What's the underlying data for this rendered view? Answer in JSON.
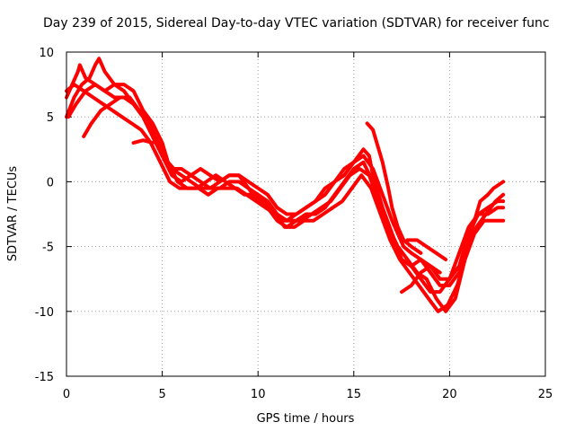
{
  "chart_data": {
    "type": "line",
    "title": "Day 239 of 2015, Sidereal Day-to-day VTEC variation (SDTVAR) for receiver func",
    "xlabel": "GPS time / hours",
    "ylabel": "SDTVAR / TECUs",
    "xlim": [
      0,
      25
    ],
    "ylim": [
      -15,
      10
    ],
    "xticks": [
      0,
      5,
      10,
      15,
      20,
      25
    ],
    "yticks": [
      -15,
      -10,
      -5,
      0,
      5,
      10
    ],
    "grid": true,
    "series_color": "#ff0000",
    "series": [
      {
        "name": "s1",
        "points": [
          [
            0.0,
            6.5
          ],
          [
            0.3,
            7.5
          ],
          [
            0.6,
            8.5
          ],
          [
            0.7,
            9.0
          ],
          [
            1.0,
            8.0
          ],
          [
            1.5,
            7.5
          ],
          [
            2.0,
            7.0
          ],
          [
            2.5,
            7.5
          ],
          [
            3.0,
            7.0
          ],
          [
            3.5,
            6.0
          ],
          [
            4.0,
            5.0
          ],
          [
            4.5,
            3.5
          ],
          [
            5.0,
            2.0
          ],
          [
            5.5,
            0.5
          ],
          [
            6.0,
            0.0
          ],
          [
            6.5,
            0.5
          ],
          [
            7.0,
            0.0
          ],
          [
            7.5,
            -0.5
          ],
          [
            8.0,
            0.0
          ],
          [
            8.5,
            0.5
          ],
          [
            9.0,
            0.5
          ],
          [
            9.5,
            -0.5
          ],
          [
            10.0,
            -1.0
          ],
          [
            10.5,
            -1.5
          ],
          [
            11.0,
            -2.5
          ],
          [
            11.5,
            -3.0
          ],
          [
            12.0,
            -2.5
          ],
          [
            12.5,
            -2.0
          ],
          [
            13.0,
            -1.5
          ],
          [
            13.5,
            -1.0
          ],
          [
            14.0,
            0.0
          ],
          [
            14.5,
            0.5
          ],
          [
            15.0,
            1.5
          ],
          [
            15.5,
            2.0
          ],
          [
            16.0,
            1.0
          ],
          [
            16.5,
            -1.0
          ],
          [
            17.0,
            -3.0
          ],
          [
            17.3,
            -4.0
          ],
          [
            17.6,
            -5.0
          ],
          [
            18.0,
            -5.5
          ],
          [
            18.5,
            -6.0
          ],
          [
            19.0,
            -7.0
          ],
          [
            19.5,
            -8.0
          ],
          [
            20.0,
            -8.0
          ],
          [
            20.5,
            -7.0
          ],
          [
            21.0,
            -4.5
          ],
          [
            21.3,
            -3.0
          ],
          [
            21.6,
            -1.5
          ],
          [
            22.0,
            -1.0
          ],
          [
            22.3,
            -0.5
          ],
          [
            22.8,
            0.0
          ]
        ]
      },
      {
        "name": "s2",
        "points": [
          [
            0.0,
            5.0
          ],
          [
            0.4,
            6.5
          ],
          [
            0.8,
            7.5
          ],
          [
            1.2,
            8.0
          ],
          [
            1.5,
            9.0
          ],
          [
            1.7,
            9.5
          ],
          [
            2.0,
            8.5
          ],
          [
            2.5,
            7.5
          ],
          [
            3.0,
            7.5
          ],
          [
            3.5,
            7.0
          ],
          [
            4.0,
            5.5
          ],
          [
            4.5,
            4.5
          ],
          [
            5.0,
            3.0
          ],
          [
            5.3,
            1.5
          ],
          [
            5.6,
            1.0
          ],
          [
            6.0,
            1.0
          ],
          [
            6.5,
            0.5
          ],
          [
            7.0,
            1.0
          ],
          [
            7.5,
            0.5
          ],
          [
            8.0,
            0.0
          ],
          [
            8.5,
            0.5
          ],
          [
            9.0,
            0.5
          ],
          [
            9.5,
            0.0
          ],
          [
            10.0,
            -0.5
          ],
          [
            10.5,
            -1.0
          ],
          [
            11.0,
            -2.0
          ],
          [
            11.5,
            -2.5
          ],
          [
            12.0,
            -2.5
          ],
          [
            12.5,
            -2.0
          ],
          [
            13.0,
            -1.5
          ],
          [
            13.5,
            -0.5
          ],
          [
            14.0,
            0.0
          ],
          [
            14.5,
            1.0
          ],
          [
            15.0,
            1.5
          ],
          [
            15.5,
            2.5
          ],
          [
            15.8,
            2.0
          ],
          [
            16.0,
            0.5
          ],
          [
            16.5,
            -2.0
          ],
          [
            17.0,
            -4.0
          ],
          [
            17.5,
            -6.0
          ],
          [
            18.0,
            -6.5
          ],
          [
            18.5,
            -6.0
          ],
          [
            19.0,
            -6.5
          ],
          [
            19.5,
            -7.5
          ],
          [
            20.0,
            -7.5
          ],
          [
            20.5,
            -6.5
          ],
          [
            21.0,
            -4.0
          ],
          [
            21.5,
            -2.5
          ],
          [
            22.0,
            -2.0
          ],
          [
            22.5,
            -1.5
          ],
          [
            22.8,
            -1.5
          ]
        ]
      },
      {
        "name": "s3",
        "points": [
          [
            0.1,
            5.0
          ],
          [
            0.5,
            6.0
          ],
          [
            1.0,
            7.0
          ],
          [
            1.5,
            7.5
          ],
          [
            2.0,
            7.0
          ],
          [
            2.5,
            6.5
          ],
          [
            3.0,
            6.5
          ],
          [
            3.5,
            6.0
          ],
          [
            4.0,
            5.0
          ],
          [
            4.5,
            3.5
          ],
          [
            5.0,
            2.0
          ],
          [
            5.5,
            1.0
          ],
          [
            6.0,
            0.5
          ],
          [
            6.5,
            0.0
          ],
          [
            7.0,
            -0.5
          ],
          [
            7.5,
            -0.5
          ],
          [
            8.0,
            -0.5
          ],
          [
            8.5,
            0.0
          ],
          [
            9.0,
            0.0
          ],
          [
            9.5,
            -0.5
          ],
          [
            10.0,
            -1.5
          ],
          [
            10.5,
            -2.0
          ],
          [
            11.0,
            -3.0
          ],
          [
            11.5,
            -3.5
          ],
          [
            12.0,
            -3.0
          ],
          [
            12.5,
            -2.5
          ],
          [
            13.0,
            -2.5
          ],
          [
            13.5,
            -2.0
          ],
          [
            14.0,
            -1.0
          ],
          [
            14.5,
            0.0
          ],
          [
            15.0,
            1.0
          ],
          [
            15.5,
            1.5
          ],
          [
            16.0,
            0.0
          ],
          [
            16.5,
            -2.5
          ],
          [
            17.0,
            -4.5
          ],
          [
            17.5,
            -6.0
          ],
          [
            18.0,
            -6.5
          ],
          [
            18.5,
            -7.5
          ],
          [
            19.0,
            -8.5
          ],
          [
            19.5,
            -8.5
          ],
          [
            20.0,
            -7.5
          ],
          [
            20.5,
            -5.5
          ],
          [
            21.0,
            -3.5
          ],
          [
            21.5,
            -2.5
          ],
          [
            22.0,
            -2.5
          ],
          [
            22.5,
            -2.0
          ],
          [
            22.8,
            -2.0
          ]
        ]
      },
      {
        "name": "s4",
        "points": [
          [
            0.9,
            3.5
          ],
          [
            1.3,
            4.5
          ],
          [
            1.8,
            5.5
          ],
          [
            2.3,
            6.0
          ],
          [
            2.8,
            6.5
          ],
          [
            3.3,
            6.5
          ],
          [
            3.8,
            5.5
          ],
          [
            4.3,
            4.5
          ],
          [
            4.8,
            3.0
          ],
          [
            5.3,
            1.5
          ],
          [
            5.8,
            0.0
          ],
          [
            6.3,
            -0.5
          ],
          [
            6.8,
            -0.5
          ],
          [
            7.3,
            0.0
          ],
          [
            7.8,
            0.5
          ],
          [
            8.3,
            0.0
          ],
          [
            8.8,
            -0.5
          ],
          [
            9.3,
            -1.0
          ],
          [
            9.8,
            -1.0
          ],
          [
            10.3,
            -1.5
          ],
          [
            10.8,
            -2.5
          ],
          [
            11.3,
            -3.0
          ],
          [
            11.8,
            -3.0
          ],
          [
            12.3,
            -3.0
          ],
          [
            12.8,
            -2.5
          ],
          [
            13.3,
            -2.0
          ],
          [
            13.8,
            -1.5
          ],
          [
            14.3,
            -0.5
          ],
          [
            14.8,
            0.5
          ],
          [
            15.3,
            1.0
          ],
          [
            15.8,
            0.5
          ],
          [
            16.3,
            -1.5
          ],
          [
            16.8,
            -3.5
          ],
          [
            17.3,
            -5.0
          ],
          [
            17.8,
            -6.0
          ],
          [
            18.3,
            -7.0
          ],
          [
            18.8,
            -7.5
          ],
          [
            19.3,
            -9.0
          ],
          [
            19.8,
            -10.0
          ],
          [
            20.3,
            -9.0
          ],
          [
            20.8,
            -6.0
          ],
          [
            21.3,
            -4.0
          ],
          [
            21.8,
            -3.0
          ],
          [
            22.3,
            -3.0
          ],
          [
            22.8,
            -3.0
          ]
        ]
      },
      {
        "name": "s5",
        "points": [
          [
            0.0,
            7.0
          ],
          [
            0.4,
            7.5
          ],
          [
            0.9,
            7.0
          ],
          [
            1.4,
            6.5
          ],
          [
            1.9,
            6.0
          ],
          [
            2.4,
            5.5
          ],
          [
            2.9,
            5.0
          ],
          [
            3.4,
            4.5
          ],
          [
            3.9,
            4.0
          ],
          [
            4.4,
            3.0
          ],
          [
            4.9,
            1.5
          ],
          [
            5.4,
            0.0
          ],
          [
            5.9,
            -0.5
          ],
          [
            6.4,
            -0.5
          ],
          [
            6.9,
            -0.5
          ],
          [
            7.4,
            -1.0
          ],
          [
            7.9,
            -0.5
          ],
          [
            8.4,
            -0.5
          ],
          [
            8.9,
            -0.5
          ],
          [
            9.4,
            -1.0
          ],
          [
            9.9,
            -1.5
          ],
          [
            10.4,
            -2.0
          ],
          [
            10.9,
            -2.5
          ],
          [
            11.4,
            -3.5
          ],
          [
            11.9,
            -3.5
          ],
          [
            12.4,
            -3.0
          ],
          [
            12.9,
            -3.0
          ],
          [
            13.4,
            -2.5
          ],
          [
            13.9,
            -2.0
          ],
          [
            14.4,
            -1.5
          ],
          [
            14.9,
            -0.5
          ],
          [
            15.4,
            0.5
          ],
          [
            15.9,
            -0.5
          ],
          [
            16.4,
            -2.5
          ],
          [
            16.9,
            -4.5
          ],
          [
            17.4,
            -6.0
          ],
          [
            17.9,
            -7.0
          ],
          [
            18.4,
            -8.0
          ],
          [
            18.9,
            -9.0
          ],
          [
            19.4,
            -10.0
          ],
          [
            19.9,
            -9.5
          ],
          [
            20.4,
            -8.0
          ],
          [
            20.9,
            -5.5
          ],
          [
            21.4,
            -3.5
          ],
          [
            21.9,
            -2.5
          ],
          [
            22.4,
            -1.5
          ],
          [
            22.8,
            -1.0
          ]
        ]
      },
      {
        "name": "s6",
        "points": [
          [
            15.7,
            4.5
          ],
          [
            16.0,
            4.0
          ],
          [
            16.2,
            3.0
          ],
          [
            16.5,
            1.5
          ],
          [
            16.8,
            -0.5
          ],
          [
            17.0,
            -2.0
          ],
          [
            17.3,
            -3.5
          ],
          [
            17.6,
            -4.5
          ],
          [
            18.0,
            -5.0
          ],
          [
            18.5,
            -5.5
          ]
        ]
      },
      {
        "name": "s7",
        "points": [
          [
            3.5,
            3.0
          ],
          [
            4.0,
            3.2
          ],
          [
            4.5,
            3.0
          ]
        ]
      },
      {
        "name": "s8",
        "points": [
          [
            17.5,
            -8.5
          ],
          [
            18.0,
            -8.0
          ],
          [
            18.5,
            -7.0
          ],
          [
            19.0,
            -6.5
          ],
          [
            19.5,
            -7.0
          ]
        ]
      },
      {
        "name": "s9",
        "points": [
          [
            17.8,
            -4.5
          ],
          [
            18.3,
            -4.5
          ],
          [
            18.8,
            -5.0
          ],
          [
            19.3,
            -5.5
          ],
          [
            19.8,
            -6.0
          ]
        ]
      }
    ]
  }
}
